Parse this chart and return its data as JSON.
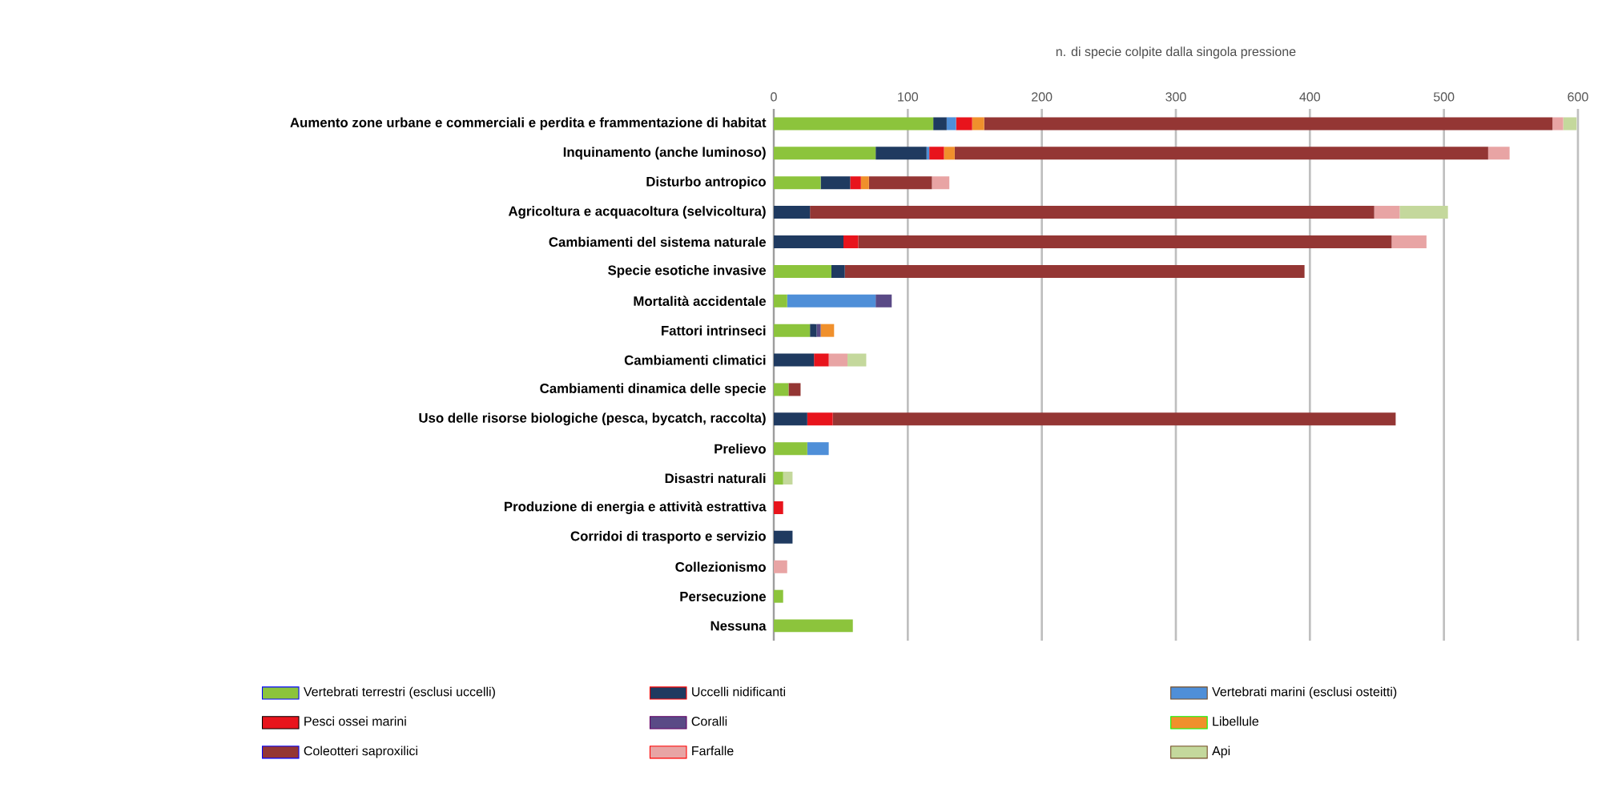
{
  "chart_data": {
    "type": "bar",
    "orientation": "horizontal",
    "stacked": true,
    "title": "n. di specie colpite dalla singola pressione",
    "categories": [
      "Aumento zone urbane e commerciali e perdita e frammentazione di habitat",
      "Inquinamento (anche luminoso)",
      "Disturbo antropico",
      "Agricoltura e acquacoltura (selvicoltura)",
      "Cambiamenti del sistema naturale",
      "Specie esotiche invasive",
      "Mortalità accidentale",
      "Fattori intrinseci",
      "Cambiamenti climatici",
      "Cambiamenti dinamica delle specie",
      "Uso delle risorse biologiche (pesca, bycatch, raccolta)",
      "Prelievo",
      "Disastri naturali",
      "Produzione di energia e attività estrattiva",
      "Corridoi di trasporto e servizio",
      "Collezionismo",
      "Persecuzione",
      "Nessuna"
    ],
    "series": [
      {
        "name": "Vertebrati terrestri (esclusi uccelli)",
        "color": "#8cc43c",
        "values": [
          119,
          76,
          35,
          0,
          0,
          43,
          10,
          27,
          0,
          11,
          0,
          25,
          7,
          0,
          0,
          0,
          7,
          59
        ]
      },
      {
        "name": "Uccelli nidificanti",
        "color": "#1f3a60",
        "values": [
          10,
          38,
          22,
          27,
          52,
          10,
          0,
          5,
          30,
          0,
          25,
          0,
          0,
          0,
          14,
          0,
          0,
          0
        ]
      },
      {
        "name": "Vertebrati marini (esclusi osteitti)",
        "color": "#4f8fd8",
        "values": [
          7,
          2,
          0,
          0,
          0,
          0,
          66,
          0,
          0,
          0,
          0,
          16,
          0,
          0,
          0,
          0,
          0,
          0
        ]
      },
      {
        "name": "Pesci ossei marini",
        "color": "#e8141c",
        "values": [
          12,
          11,
          8,
          0,
          11,
          0,
          0,
          0,
          11,
          0,
          19,
          0,
          0,
          7,
          0,
          0,
          0,
          0
        ]
      },
      {
        "name": "Coralli",
        "color": "#5a4a86",
        "values": [
          0,
          0,
          0,
          0,
          0,
          0,
          12,
          3,
          0,
          0,
          0,
          0,
          0,
          0,
          0,
          0,
          0,
          0
        ]
      },
      {
        "name": "Libellule",
        "color": "#f0902c",
        "values": [
          9,
          8,
          6,
          0,
          0,
          0,
          0,
          10,
          0,
          0,
          0,
          0,
          0,
          0,
          0,
          0,
          0,
          0
        ]
      },
      {
        "name": "Coleotteri saproxilici",
        "color": "#943634",
        "values": [
          424,
          398,
          47,
          421,
          398,
          343,
          0,
          0,
          0,
          9,
          420,
          0,
          0,
          0,
          0,
          0,
          0,
          0
        ]
      },
      {
        "name": "Farfalle",
        "color": "#e8a4a4",
        "values": [
          8,
          16,
          13,
          19,
          26,
          0,
          0,
          0,
          14,
          0,
          0,
          0,
          0,
          0,
          0,
          10,
          0,
          0
        ]
      },
      {
        "name": "Api",
        "color": "#c4d89c",
        "values": [
          10,
          0,
          0,
          36,
          0,
          0,
          0,
          0,
          14,
          0,
          0,
          0,
          7,
          0,
          0,
          0,
          0,
          0
        ]
      }
    ],
    "xlim": [
      0,
      600
    ],
    "xticks": [
      0,
      100,
      200,
      300,
      400,
      500,
      600
    ],
    "grid": "x",
    "legend": "bottom"
  }
}
